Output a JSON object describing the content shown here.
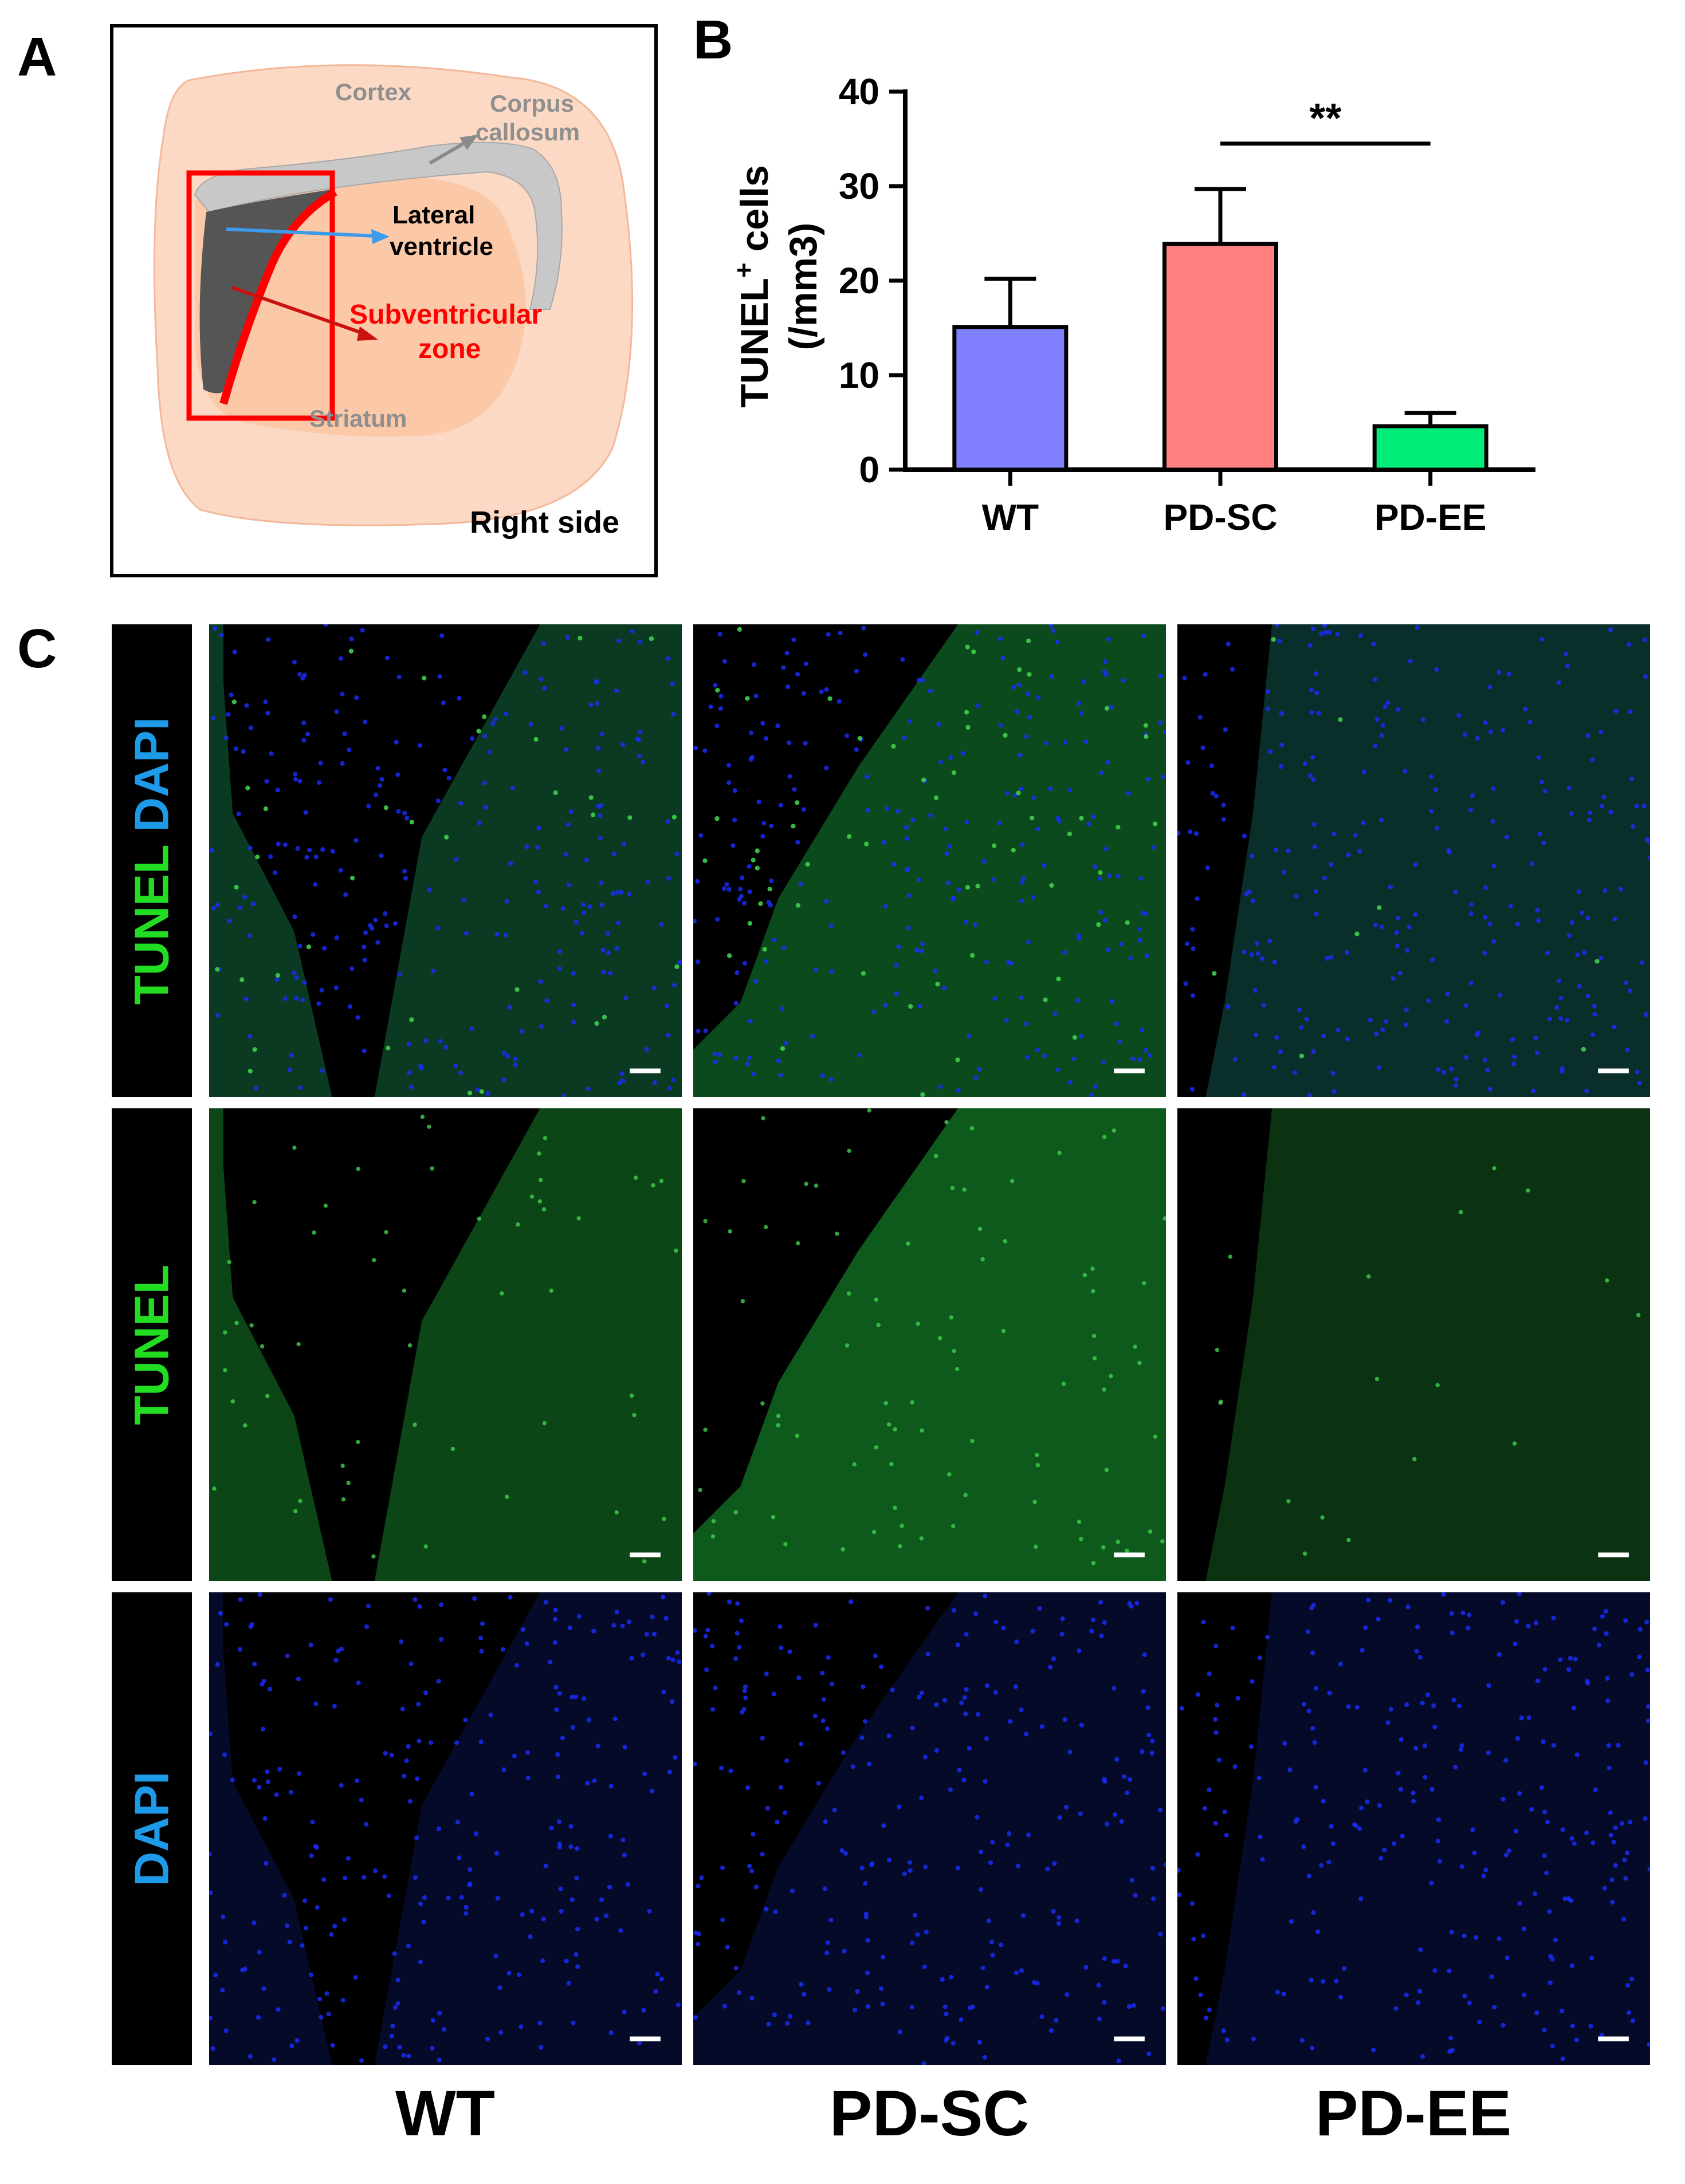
{
  "panels": {
    "a": "A",
    "b": "B",
    "c": "C"
  },
  "diagram": {
    "cortex": "Cortex",
    "corpus_callosum_1": "Corpus",
    "corpus_callosum_2": "callosum",
    "lateral_ventricle_1": "Lateral",
    "lateral_ventricle_2": "ventricle",
    "svz_1": "Subventricular",
    "svz_2": "zone",
    "striatum": "Striatum",
    "side": "Right side",
    "colors": {
      "brain": "#fcd9c4",
      "striatum": "#fbc9a8",
      "corpus": "#c8c8c8",
      "ventricle": "#555555",
      "svz": "#ff0000",
      "arrow_blue": "#3d9be9",
      "arrow_gray": "#8a8a8a"
    }
  },
  "chart_data": {
    "type": "bar",
    "categories": [
      "WT",
      "PD-SC",
      "PD-EE"
    ],
    "values": [
      15.1,
      23.9,
      4.6
    ],
    "errors": [
      5.1,
      5.8,
      1.4
    ],
    "colors": [
      "#8080ff",
      "#ff8080",
      "#00ee77"
    ],
    "ylabel_main": "TUNEL",
    "ylabel_sup": "+",
    "ylabel_rest": " cells",
    "ylabel_unit": "(/mm3)",
    "ylim": [
      0,
      40
    ],
    "yticks": [
      0,
      10,
      20,
      30,
      40
    ],
    "significance": {
      "between": [
        "PD-SC",
        "PD-EE"
      ],
      "label": "**"
    }
  },
  "micrographs": {
    "row_labels": [
      {
        "parts": [
          "TUNEL",
          " DAPI"
        ],
        "colors": [
          "#22dd22",
          "#1e9be8"
        ]
      },
      {
        "parts": [
          "TUNEL"
        ],
        "colors": [
          "#22dd22"
        ]
      },
      {
        "parts": [
          "DAPI"
        ],
        "colors": [
          "#1e9be8"
        ]
      }
    ],
    "columns": [
      "WT",
      "PD-SC",
      "PD-EE"
    ]
  }
}
